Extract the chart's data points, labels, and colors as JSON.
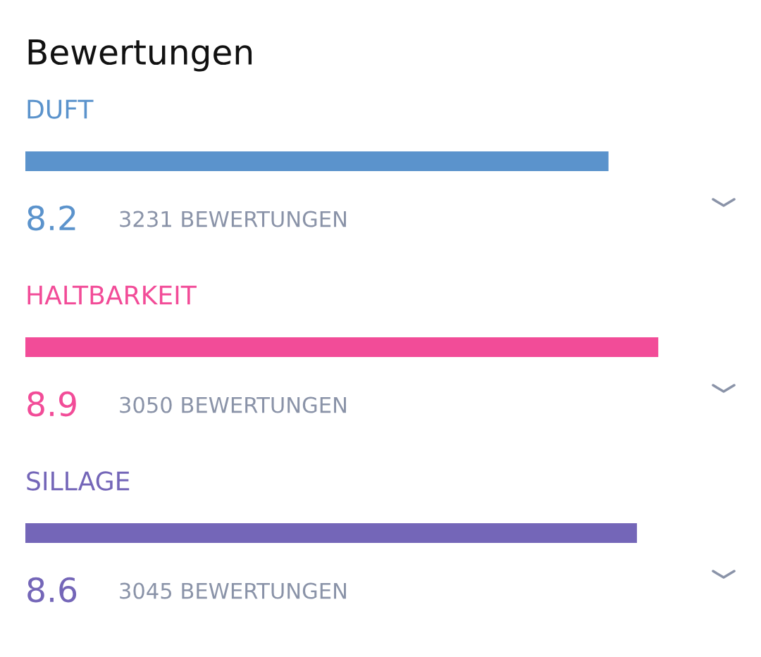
{
  "chart_data": {
    "type": "bar",
    "orientation": "horizontal",
    "title": "Bewertungen",
    "categories": [
      "DUFT",
      "HALTBARKEIT",
      "SILLAGE"
    ],
    "values": [
      8.2,
      8.9,
      8.6
    ],
    "colors": [
      "#5b93cc",
      "#f24c98",
      "#7466b8"
    ],
    "data_labels": true,
    "annotations": [
      "3231 BEWERTUNGEN",
      "3050 BEWERTUNGEN",
      "3045 BEWERTUNGEN"
    ]
  }
}
